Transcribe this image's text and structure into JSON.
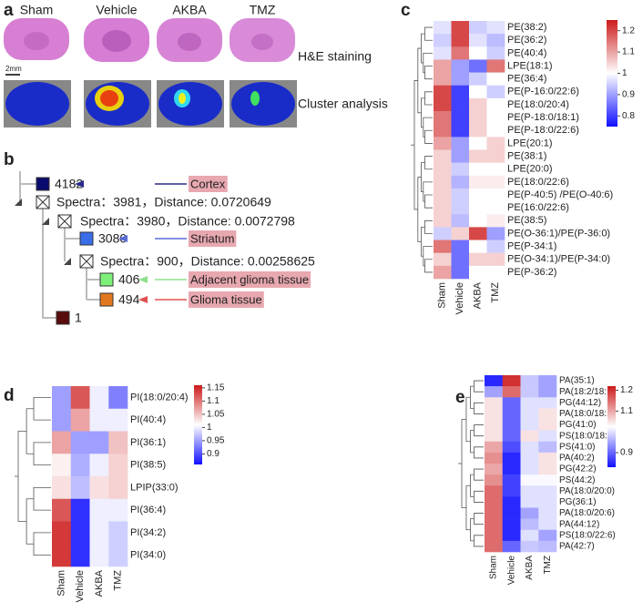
{
  "a": {
    "label": "a",
    "columns": [
      "Sham",
      "Vehicle",
      "AKBA",
      "TMZ"
    ],
    "rows": [
      "H&E staining",
      "Cluster analysis"
    ],
    "scale": "2mm"
  },
  "b": {
    "label": "b",
    "nodes": [
      {
        "text": "4182",
        "color": "#0b0a6e",
        "annotation": "Cortex",
        "annotation_color": "#2a2a8a"
      },
      {
        "text": "Spectra：3981，Distance: 0.0720649"
      },
      {
        "text": "Spectra：3980，Distance: 0.0072798"
      },
      {
        "text": "3080",
        "color": "#3a6ee8",
        "annotation": "Striatum",
        "annotation_color": "#5a6ad8"
      },
      {
        "text": "Spectra：900，Distance: 0.00258625"
      },
      {
        "text": "406",
        "color": "#7ef07a",
        "annotation": "Adjacent glioma tissue",
        "annotation_color": "#8ee08a"
      },
      {
        "text": "494",
        "color": "#e2781e",
        "annotation": "Glioma tissue",
        "annotation_color": "#e05050"
      },
      {
        "text": "1",
        "color": "#5a0c0c"
      }
    ]
  },
  "heatmaps": [
    {
      "type": "heatmap",
      "label": "c",
      "columns": [
        "Sham",
        "Vehicle",
        "AKBA",
        "TMZ"
      ],
      "colors": [
        "#1010ff",
        "#ffffff",
        "#cc1a1a"
      ],
      "clim": [
        0.75,
        1.25
      ],
      "cticks": [
        1.2,
        1.1,
        1,
        0.9,
        0.8
      ],
      "rows": [
        "PE(38:2)",
        "PE(36:2)",
        "PE(40:4)",
        "LPE(18:1)",
        "PE(36:4)",
        "PE(P-16:0/22:6)",
        "PE(18:0/20:4)",
        "PE(P-18:0/18:1)",
        "PE(P-18:0/22:6)",
        "LPE(20:1)",
        "PE(38:1)",
        "LPE(20:0)",
        "PE(18:0/22:6)",
        "PE(P-40:5) /PE(O-40:6)",
        "PE(16:0/22:6)",
        "PE(38:5)",
        "PE(O-36:1)/PE(P-36:0)",
        "PE(P-34:1)",
        "PE(O-34:1)/PE(P-34:0)",
        "PE(P-36:2)"
      ],
      "values": [
        [
          0.97,
          1.2,
          0.95,
          0.97
        ],
        [
          0.95,
          1.2,
          0.97,
          0.93
        ],
        [
          0.97,
          1.15,
          1.0,
          0.95
        ],
        [
          1.1,
          0.9,
          0.85,
          1.15
        ],
        [
          1.1,
          0.9,
          0.95,
          1.0
        ],
        [
          1.2,
          0.8,
          1.0,
          0.95
        ],
        [
          1.2,
          0.8,
          1.05,
          1.0
        ],
        [
          1.15,
          0.8,
          1.05,
          1.0
        ],
        [
          1.15,
          0.8,
          1.05,
          1.0
        ],
        [
          1.1,
          0.9,
          1.0,
          1.05
        ],
        [
          1.05,
          0.9,
          1.05,
          1.05
        ],
        [
          1.05,
          0.95,
          1.0,
          1.0
        ],
        [
          1.05,
          0.92,
          1.02,
          1.02
        ],
        [
          1.05,
          0.95,
          1.0,
          1.0
        ],
        [
          1.05,
          0.95,
          1.0,
          1.0
        ],
        [
          1.05,
          0.93,
          1.0,
          1.02
        ],
        [
          0.95,
          1.05,
          1.2,
          0.9
        ],
        [
          1.15,
          0.85,
          1.0,
          0.95
        ],
        [
          1.05,
          0.85,
          1.05,
          1.05
        ],
        [
          1.1,
          0.85,
          1.0,
          1.0
        ]
      ]
    },
    {
      "type": "heatmap",
      "label": "d",
      "columns": [
        "Sham",
        "Vehicle",
        "AKBA",
        "TMZ"
      ],
      "colors": [
        "#1010ff",
        "#ffffff",
        "#cc1a1a"
      ],
      "clim": [
        0.86,
        1.16
      ],
      "cticks": [
        1.15,
        1.1,
        1.05,
        1,
        0.95,
        0.9
      ],
      "rows": [
        "PI(18:0/20:4)",
        "PI(40:4)",
        "PI(36:1)",
        "PI(38:5)",
        "LPIP(33:0)",
        "PI(36:4)",
        "PI(34:2)",
        "PI(34:0)"
      ],
      "values": [
        [
          0.95,
          1.12,
          1.0,
          0.93
        ],
        [
          0.95,
          1.07,
          1.0,
          1.0
        ],
        [
          1.07,
          0.95,
          0.95,
          1.05
        ],
        [
          1.02,
          0.96,
          1.0,
          1.04
        ],
        [
          1.03,
          0.97,
          1.03,
          1.04
        ],
        [
          1.12,
          0.88,
          1.0,
          1.0
        ],
        [
          1.14,
          0.88,
          1.0,
          0.98
        ],
        [
          1.14,
          0.88,
          1.0,
          0.98
        ]
      ]
    },
    {
      "type": "heatmap",
      "label": "e",
      "columns": [
        "Sham",
        "Vehicle",
        "AKBA",
        "TMZ"
      ],
      "colors": [
        "#1010ff",
        "#ffffff",
        "#cc1a1a"
      ],
      "clim": [
        0.83,
        1.22
      ],
      "cticks": [
        1.2,
        1.1,
        0.9
      ],
      "rows": [
        "PA(35:1)",
        "PA(18:2/18:1)",
        "PG(44:12)",
        "PA(18:0/18:1)",
        "PG(41:0)",
        "PS(18:0/18:1)",
        "PS(41:0)",
        "PA(40:2)",
        "PG(42:2)",
        "PS(44:2)",
        "PA(18:0/20:0)",
        "PG(36:1)",
        "PA(18:0/20:6)",
        "PA(44:12)",
        "PS(18:0/22:6)",
        "PA(42:7)"
      ],
      "values": [
        [
          0.85,
          1.2,
          0.98,
          0.95
        ],
        [
          0.95,
          1.15,
          0.98,
          0.95
        ],
        [
          1.05,
          0.9,
          1.0,
          1.0
        ],
        [
          1.05,
          0.9,
          1.0,
          1.05
        ],
        [
          1.05,
          0.9,
          1.0,
          1.05
        ],
        [
          1.05,
          0.9,
          1.05,
          1.0
        ],
        [
          1.1,
          0.88,
          1.0,
          0.97
        ],
        [
          1.12,
          0.85,
          1.0,
          1.05
        ],
        [
          1.1,
          0.85,
          1.0,
          1.05
        ],
        [
          1.12,
          0.87,
          1.02,
          1.02
        ],
        [
          1.15,
          0.87,
          1.0,
          1.0
        ],
        [
          1.15,
          0.85,
          1.0,
          1.0
        ],
        [
          1.15,
          0.85,
          0.95,
          1.0
        ],
        [
          1.15,
          0.85,
          0.97,
          1.0
        ],
        [
          1.15,
          0.85,
          1.0,
          0.95
        ],
        [
          1.15,
          0.9,
          0.98,
          0.97
        ]
      ]
    }
  ]
}
